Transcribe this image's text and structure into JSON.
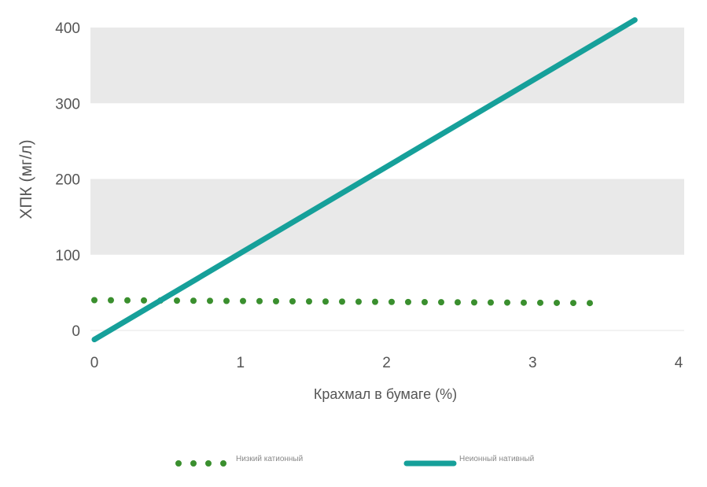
{
  "chart_data": {
    "type": "line",
    "xlabel": "Крахмал в бумаге (%)",
    "ylabel": "ХПК (мг/л)",
    "xlim": [
      0,
      4
    ],
    "ylim": [
      0,
      400
    ],
    "xticks": [
      "0",
      "1",
      "2",
      "3",
      "4"
    ],
    "yticks": [
      "0",
      "100",
      "200",
      "300",
      "400"
    ],
    "bands": [
      [
        100,
        200
      ],
      [
        300,
        400
      ]
    ],
    "legend_position": "bottom",
    "series": [
      {
        "name": "Низкий катионный",
        "style": "dotted",
        "color": "#3a8f2e",
        "x": [
          0,
          3.5
        ],
        "y": [
          40,
          36
        ]
      },
      {
        "name": "Неионный нативный",
        "style": "solid",
        "color": "#16a09a",
        "x": [
          0,
          3.7
        ],
        "y": [
          -12,
          410
        ]
      }
    ]
  }
}
